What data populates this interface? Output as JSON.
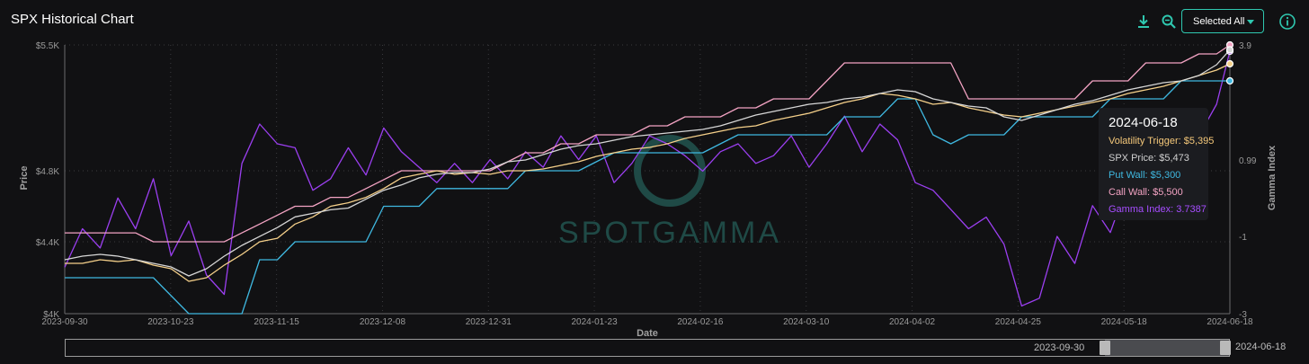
{
  "header": {
    "title": "SPX Historical Chart",
    "select_label": "Selected All",
    "icons": [
      "download-icon",
      "zoom-icon",
      "info-icon"
    ]
  },
  "colors": {
    "background": "#111113",
    "accent": "#2fc8b0",
    "volatility_trigger": "#f5d08a",
    "spx_price": "#d6d6d6",
    "put_wall": "#3fb8e0",
    "call_wall": "#f3a3c3",
    "gamma_index": "#9b3ff0"
  },
  "tooltip": {
    "date": "2024-06-18",
    "rows": [
      {
        "text": "Volatility Trigger: $5,395",
        "color": "#f5c87a"
      },
      {
        "text": "SPX Price: $5,473",
        "color": "#cfcfcf"
      },
      {
        "text": "Put Wall: $5,300",
        "color": "#3fb8e0"
      },
      {
        "text": "Call Wall: $5,500",
        "color": "#f3a3c3"
      },
      {
        "text": "Gamma Index: 3.7387",
        "color": "#a64dff"
      }
    ]
  },
  "navigator": {
    "start_label": "2023-09-30",
    "end_label": "2024-06-18"
  },
  "watermark": "SPOTGAMMA",
  "chart_data": {
    "type": "line",
    "xlabel": "Date",
    "ylabel": "Price",
    "y2label": "Gamma Index",
    "x_ticks": [
      "2023-09-30",
      "2023-10-23",
      "2023-11-15",
      "2023-12-08",
      "2023-12-31",
      "2024-01-23",
      "2024-02-16",
      "2024-03-10",
      "2024-04-02",
      "2024-04-25",
      "2024-05-18",
      "2024-06-18"
    ],
    "y_ticks": [
      {
        "label": "$4K",
        "value": 4000
      },
      {
        "label": "$4.4K",
        "value": 4400
      },
      {
        "label": "$4.8K",
        "value": 4800
      },
      {
        "label": "$5.5K",
        "value": 5500
      }
    ],
    "y2_ticks": [
      {
        "label": "-3",
        "value": -3
      },
      {
        "label": "-1",
        "value": -1
      },
      {
        "label": "0.99",
        "value": 0.99
      },
      {
        "label": "3.9",
        "value": 3.9
      }
    ],
    "ylim": [
      4000,
      5500
    ],
    "y2lim": [
      -3,
      3.9
    ],
    "x": [
      0,
      4,
      8,
      12,
      16,
      20,
      24,
      28,
      32,
      36,
      40,
      44,
      48,
      52,
      56,
      60,
      64,
      68,
      72,
      76,
      80,
      84,
      88,
      92,
      96,
      100,
      104,
      108,
      112,
      116,
      120,
      124,
      128,
      132,
      136,
      140,
      144,
      148,
      152,
      156,
      160,
      164,
      168,
      172,
      176,
      180,
      184,
      188,
      192,
      196,
      200,
      204,
      208,
      212,
      216,
      220,
      224,
      228,
      232,
      236,
      240,
      244,
      248,
      252,
      256,
      260,
      263
    ],
    "series": [
      {
        "name": "Volatility Trigger",
        "color": "#f5d08a",
        "values": [
          4280,
          4280,
          4300,
          4290,
          4300,
          4270,
          4250,
          4180,
          4200,
          4270,
          4330,
          4400,
          4420,
          4500,
          4540,
          4600,
          4620,
          4650,
          4700,
          4760,
          4780,
          4800,
          4780,
          4790,
          4780,
          4800,
          4800,
          4810,
          4830,
          4850,
          4880,
          4900,
          4920,
          4930,
          4950,
          4980,
          5000,
          5020,
          5040,
          5050,
          5080,
          5100,
          5120,
          5150,
          5180,
          5200,
          5230,
          5220,
          5200,
          5170,
          5180,
          5150,
          5130,
          5110,
          5100,
          5120,
          5140,
          5160,
          5180,
          5200,
          5230,
          5250,
          5270,
          5300,
          5330,
          5360,
          5395
        ]
      },
      {
        "name": "SPX Price",
        "color": "#d6d6d6",
        "values": [
          4300,
          4320,
          4330,
          4320,
          4300,
          4280,
          4260,
          4210,
          4250,
          4320,
          4380,
          4430,
          4480,
          4540,
          4560,
          4580,
          4590,
          4640,
          4690,
          4720,
          4760,
          4780,
          4790,
          4790,
          4810,
          4850,
          4860,
          4890,
          4920,
          4940,
          4950,
          4970,
          4990,
          5000,
          5010,
          5020,
          5030,
          5050,
          5080,
          5110,
          5130,
          5150,
          5170,
          5180,
          5200,
          5210,
          5230,
          5250,
          5240,
          5200,
          5180,
          5160,
          5150,
          5100,
          5080,
          5110,
          5140,
          5170,
          5190,
          5220,
          5250,
          5270,
          5290,
          5300,
          5330,
          5390,
          5473
        ]
      },
      {
        "name": "Put Wall",
        "color": "#3fb8e0",
        "values": [
          4200,
          4200,
          4200,
          4200,
          4200,
          4200,
          4100,
          4000,
          4000,
          4000,
          4000,
          4300,
          4300,
          4400,
          4400,
          4400,
          4400,
          4400,
          4600,
          4600,
          4600,
          4700,
          4700,
          4700,
          4700,
          4700,
          4800,
          4800,
          4800,
          4800,
          4850,
          4900,
          4900,
          4900,
          4900,
          4900,
          4900,
          4950,
          5000,
          5000,
          5000,
          5000,
          5000,
          5000,
          5100,
          5100,
          5100,
          5200,
          5200,
          5000,
          4950,
          5000,
          5000,
          5000,
          5100,
          5100,
          5100,
          5100,
          5100,
          5200,
          5200,
          5200,
          5200,
          5300,
          5300,
          5300,
          5300
        ]
      },
      {
        "name": "Call Wall",
        "color": "#f3a3c3",
        "values": [
          4450,
          4450,
          4450,
          4450,
          4450,
          4400,
          4400,
          4400,
          4400,
          4400,
          4450,
          4500,
          4550,
          4600,
          4600,
          4650,
          4650,
          4700,
          4750,
          4800,
          4800,
          4800,
          4800,
          4800,
          4800,
          4850,
          4900,
          4900,
          4950,
          4950,
          5000,
          5000,
          5000,
          5050,
          5050,
          5100,
          5100,
          5100,
          5150,
          5150,
          5200,
          5200,
          5200,
          5300,
          5400,
          5400,
          5400,
          5400,
          5400,
          5400,
          5400,
          5200,
          5200,
          5200,
          5200,
          5200,
          5200,
          5200,
          5300,
          5300,
          5300,
          5400,
          5400,
          5400,
          5450,
          5450,
          5500
        ]
      },
      {
        "name": "Gamma Index",
        "color": "#9b3ff0",
        "axis": "right",
        "values": [
          -1.8,
          -0.8,
          -1.3,
          0.0,
          -0.8,
          0.5,
          -1.5,
          -0.6,
          -2.0,
          -2.5,
          0.9,
          1.9,
          1.4,
          1.3,
          0.2,
          0.5,
          1.3,
          0.6,
          1.8,
          1.2,
          0.8,
          0.4,
          0.9,
          0.4,
          1.0,
          0.5,
          1.2,
          0.8,
          1.6,
          1.0,
          1.6,
          0.4,
          0.9,
          1.6,
          1.4,
          1.1,
          0.7,
          1.2,
          1.4,
          0.9,
          1.1,
          1.6,
          0.8,
          1.4,
          2.1,
          1.2,
          1.9,
          1.5,
          0.4,
          0.2,
          -0.3,
          -0.8,
          -0.5,
          -1.2,
          -2.8,
          -2.6,
          -1.0,
          -1.7,
          -0.2,
          -0.9,
          0.4,
          0.8,
          -0.1,
          1.1,
          1.6,
          2.4,
          3.74
        ]
      }
    ],
    "grid": true,
    "legend": "tooltip"
  }
}
